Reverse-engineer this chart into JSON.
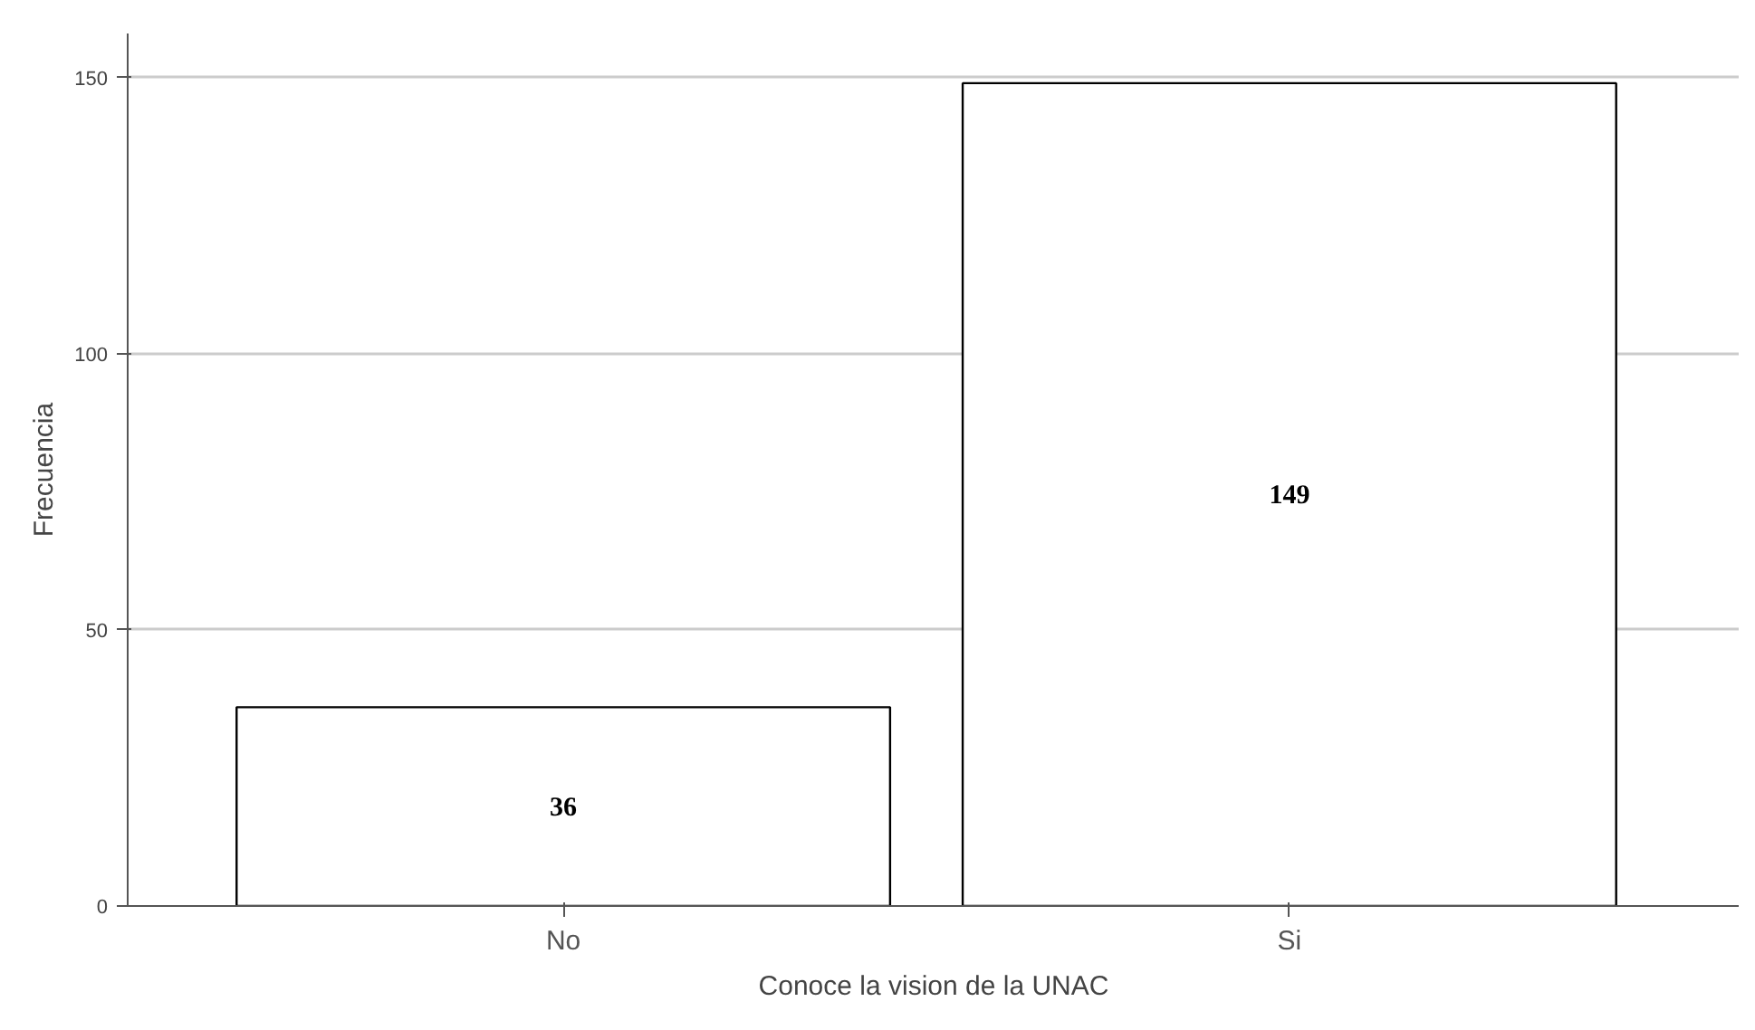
{
  "chart_data": {
    "type": "bar",
    "xlabel": "Conoce la vision de la UNAC",
    "ylabel": "Frecuencia",
    "categories": [
      "No",
      "Si"
    ],
    "values": [
      36,
      149
    ],
    "color": "#ffffff",
    "ylim": [
      0,
      158
    ],
    "yticks": [
      0,
      50,
      100,
      150
    ],
    "grid": "y",
    "data_labels": true
  }
}
